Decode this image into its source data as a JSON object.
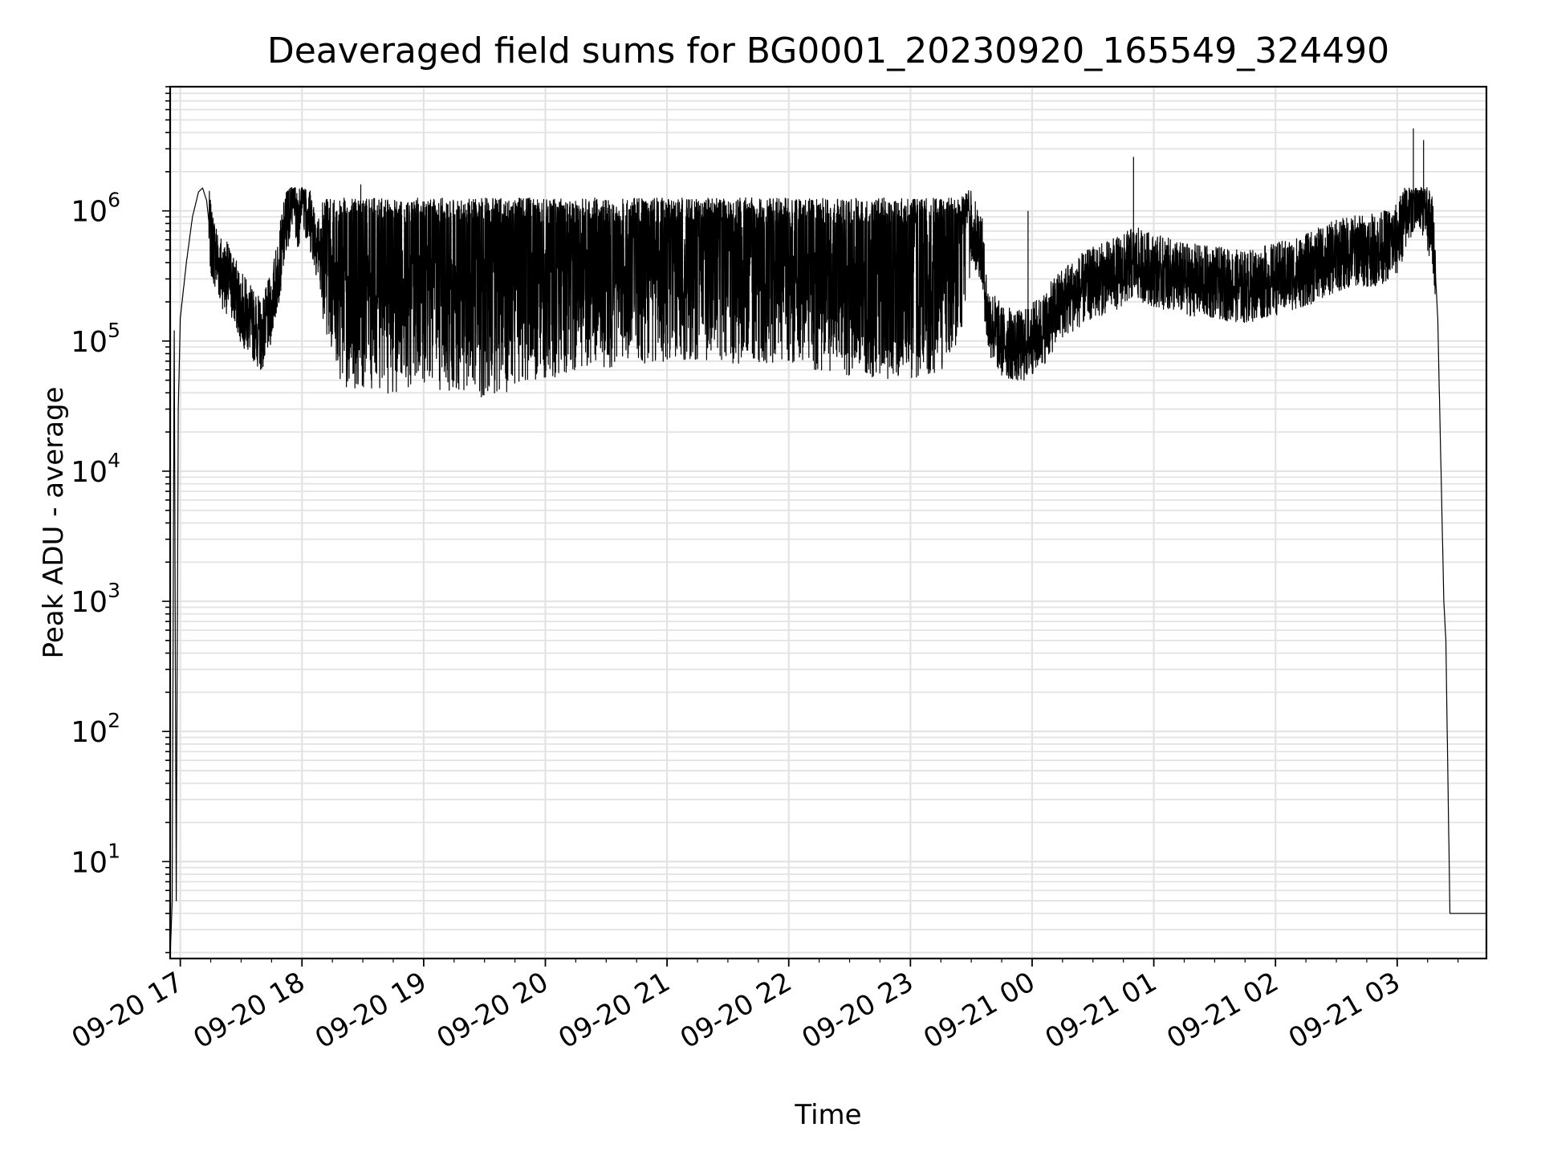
{
  "chart_data": {
    "type": "line",
    "title": "Deaveraged field sums for BG0001_20230920_165549_324490",
    "xlabel": "Time",
    "ylabel": "Peak ADU - average",
    "y_scale": "log",
    "ylim": [
      1.8,
      9000000
    ],
    "xlim": [
      "2023-09-20 16:55",
      "2023-09-21 03:44"
    ],
    "grid": true,
    "line_color": "#000000",
    "grid_color": "#e3e3e3",
    "x_tick_labels": [
      "09-20 17",
      "09-20 18",
      "09-20 19",
      "09-20 20",
      "09-20 21",
      "09-20 22",
      "09-20 23",
      "09-21 00",
      "09-21 01",
      "09-21 02",
      "09-21 03"
    ],
    "x_tick_values": [
      "2023-09-20 17:00",
      "2023-09-20 18:00",
      "2023-09-20 19:00",
      "2023-09-20 20:00",
      "2023-09-20 21:00",
      "2023-09-20 22:00",
      "2023-09-20 23:00",
      "2023-09-21 00:00",
      "2023-09-21 01:00",
      "2023-09-21 02:00",
      "2023-09-21 03:00"
    ],
    "y_tick_labels": [
      {
        "base": "10",
        "exp": "1",
        "value": 10
      },
      {
        "base": "10",
        "exp": "2",
        "value": 100
      },
      {
        "base": "10",
        "exp": "3",
        "value": 1000
      },
      {
        "base": "10",
        "exp": "4",
        "value": 10000
      },
      {
        "base": "10",
        "exp": "5",
        "value": 100000
      },
      {
        "base": "10",
        "exp": "6",
        "value": 1000000
      }
    ],
    "series": [
      {
        "points": [
          [
            "2023-09-20 16:55",
            1.8
          ],
          [
            "2023-09-20 16:56",
            5
          ],
          [
            "2023-09-20 16:57",
            120000
          ],
          [
            "2023-09-20 16:58",
            5
          ],
          [
            "2023-09-20 16:59",
            30000
          ],
          [
            "2023-09-20 17:00",
            150000
          ],
          [
            "2023-09-20 17:03",
            400000
          ],
          [
            "2023-09-20 17:06",
            900000
          ],
          [
            "2023-09-20 17:09",
            1400000
          ],
          [
            "2023-09-20 17:11",
            1500000
          ],
          [
            "2023-09-20 17:13",
            1200000
          ],
          [
            "2023-09-20 17:15",
            600000
          ],
          [
            "2023-09-20 17:20",
            350000
          ],
          [
            "2023-09-20 17:25",
            280000
          ],
          [
            "2023-09-20 17:30",
            180000
          ],
          [
            "2023-09-20 17:35",
            140000
          ],
          [
            "2023-09-20 17:40",
            110000
          ],
          [
            "2023-09-20 17:45",
            180000
          ],
          [
            "2023-09-20 17:50",
            500000
          ],
          [
            "2023-09-20 17:55",
            1500000
          ],
          [
            "2023-09-20 17:58",
            900000
          ],
          [
            "2023-09-20 18:00",
            1500000
          ],
          [
            "2023-09-20 18:05",
            800000
          ],
          [
            "2023-09-20 18:10",
            400000
          ],
          [
            "2023-09-20 18:15",
            250000
          ],
          [
            "2023-09-20 18:20",
            160000
          ],
          [
            "2023-09-20 18:30",
            150000
          ],
          [
            "2023-09-20 18:40",
            130000
          ],
          [
            "2023-09-20 18:50",
            150000
          ],
          [
            "2023-09-20 19:00",
            160000
          ],
          [
            "2023-09-20 19:15",
            140000
          ],
          [
            "2023-09-20 19:30",
            130000
          ],
          [
            "2023-09-20 19:45",
            150000
          ],
          [
            "2023-09-20 20:00",
            180000
          ],
          [
            "2023-09-20 20:30",
            220000
          ],
          [
            "2023-09-20 21:00",
            250000
          ],
          [
            "2023-09-20 21:30",
            240000
          ],
          [
            "2023-09-20 22:00",
            230000
          ],
          [
            "2023-09-20 22:30",
            190000
          ],
          [
            "2023-09-20 23:00",
            170000
          ],
          [
            "2023-09-20 23:15",
            200000
          ],
          [
            "2023-09-20 23:25",
            400000
          ],
          [
            "2023-09-20 23:30",
            700000
          ],
          [
            "2023-09-20 23:35",
            550000
          ],
          [
            "2023-09-20 23:38",
            150000
          ],
          [
            "2023-09-20 23:45",
            100000
          ],
          [
            "2023-09-20 23:55",
            90000
          ],
          [
            "2023-09-21 00:05",
            120000
          ],
          [
            "2023-09-21 00:15",
            200000
          ],
          [
            "2023-09-21 00:30",
            280000
          ],
          [
            "2023-09-21 00:45",
            350000
          ],
          [
            "2023-09-21 00:50",
            400000
          ],
          [
            "2023-09-21 01:00",
            350000
          ],
          [
            "2023-09-21 01:15",
            300000
          ],
          [
            "2023-09-21 01:30",
            280000
          ],
          [
            "2023-09-21 01:45",
            260000
          ],
          [
            "2023-09-21 02:00",
            300000
          ],
          [
            "2023-09-21 02:15",
            350000
          ],
          [
            "2023-09-21 02:30",
            450000
          ],
          [
            "2023-09-21 02:40",
            500000
          ],
          [
            "2023-09-21 02:50",
            500000
          ],
          [
            "2023-09-21 03:00",
            600000
          ],
          [
            "2023-09-21 03:05",
            1000000
          ],
          [
            "2023-09-21 03:10",
            1600000
          ],
          [
            "2023-09-21 03:15",
            900000
          ],
          [
            "2023-09-21 03:18",
            600000
          ],
          [
            "2023-09-21 03:20",
            150000
          ],
          [
            "2023-09-21 03:23",
            1000
          ],
          [
            "2023-09-21 03:24",
            500
          ],
          [
            "2023-09-21 03:26",
            4
          ],
          [
            "2023-09-21 03:44",
            4
          ]
        ]
      }
    ],
    "spikes": [
      [
        "2023-09-20 18:29",
        1600000
      ],
      [
        "2023-09-20 23:58",
        1000000
      ],
      [
        "2023-09-21 00:50",
        2600000
      ],
      [
        "2023-09-21 03:08",
        4300000
      ],
      [
        "2023-09-21 03:13",
        3500000
      ]
    ]
  }
}
